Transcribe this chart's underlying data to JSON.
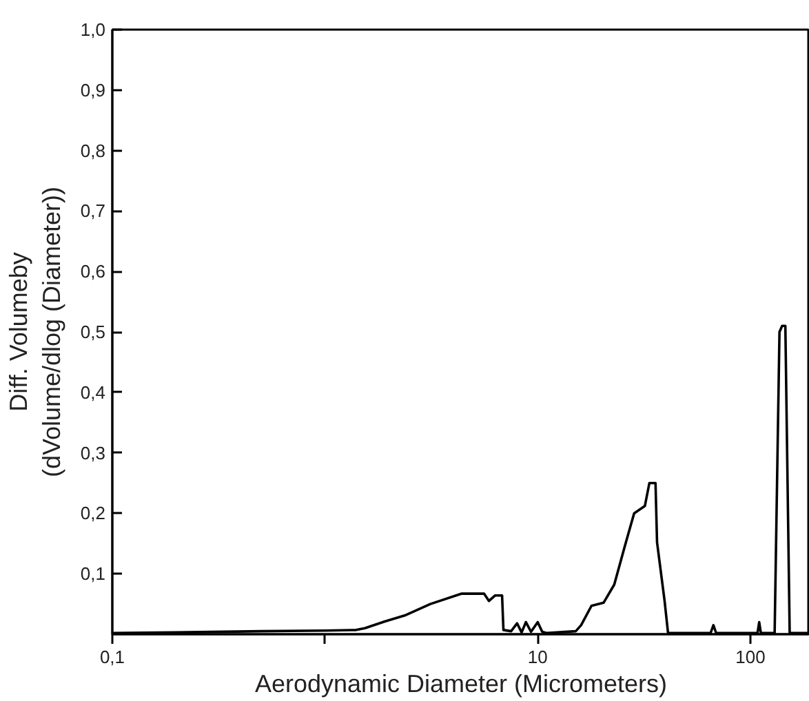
{
  "chart_data": {
    "type": "line",
    "xlabel": "Aerodynamic Diameter (Micrometers)",
    "ylabel": "Diff. Volumeby\n(dVolume/dlog (Diameter))",
    "log": "x",
    "xlim": [
      0.1,
      190
    ],
    "ylim": [
      0,
      1.0
    ],
    "xticks": [
      {
        "value": 0.1,
        "label": "0,1"
      },
      {
        "value": 1,
        "label": null
      },
      10,
      100
    ],
    "yticks": [
      {
        "value": 0.1,
        "label": "0,1"
      },
      {
        "value": 0.2,
        "label": "0,2"
      },
      {
        "value": 0.3,
        "label": "0,3"
      },
      {
        "value": 0.4,
        "label": "0,4"
      },
      {
        "value": 0.5,
        "label": "0,5"
      },
      {
        "value": 0.6,
        "label": "0,6"
      },
      {
        "value": 0.7,
        "label": "0,7"
      },
      {
        "value": 0.8,
        "label": "0,8"
      },
      {
        "value": 0.9,
        "label": "0,9"
      },
      {
        "value": 1.0,
        "label": "1,0"
      }
    ],
    "grid": false,
    "marker": "none",
    "line_style": "solid",
    "series": [
      {
        "color": "#000000",
        "x": [
          0.1,
          0.2,
          0.5,
          1,
          1.4,
          1.54,
          1.91,
          2.37,
          3.13,
          4.37,
          5.6,
          5.9,
          6.3,
          6.8,
          6.9,
          7.5,
          8,
          8.4,
          8.8,
          9.3,
          10,
          10.5,
          11,
          15.1,
          16,
          17.9,
          20.4,
          22.9,
          25.7,
          28.4,
          31.9,
          33.5,
          35.8,
          36.4,
          39.5,
          41,
          65,
          67,
          69,
          108,
          110,
          112,
          130,
          137,
          141,
          146,
          153,
          190
        ],
        "values": [
          0.002,
          0.003,
          0.005,
          0.006,
          0.007,
          0.01,
          0.021,
          0.031,
          0.05,
          0.067,
          0.067,
          0.055,
          0.064,
          0.064,
          0.007,
          0.005,
          0.018,
          0.003,
          0.02,
          0.004,
          0.02,
          0.004,
          0.002,
          0.005,
          0.015,
          0.047,
          0.052,
          0.082,
          0.146,
          0.2,
          0.212,
          0.25,
          0.25,
          0.152,
          0.055,
          0.002,
          0.002,
          0.015,
          0.002,
          0.002,
          0.02,
          0.002,
          0.002,
          0.5,
          0.51,
          0.51,
          0.002,
          0.002
        ]
      }
    ]
  }
}
